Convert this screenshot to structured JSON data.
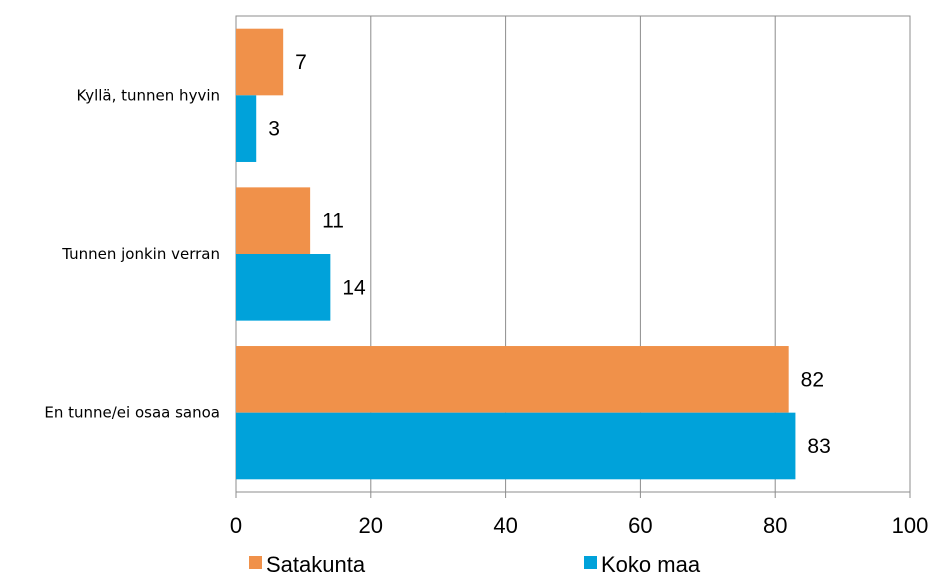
{
  "chart_data": {
    "type": "bar",
    "orientation": "horizontal",
    "categories": [
      "Kyllä, tunnen hyvin",
      "Tunnen jonkin verran",
      "En tunne/ei osaa sanoa"
    ],
    "series": [
      {
        "name": "Satakunta",
        "values": [
          7,
          11,
          82
        ],
        "color": "#F0914A"
      },
      {
        "name": "Koko maa",
        "values": [
          3,
          14,
          83
        ],
        "color": "#00A2DA"
      }
    ],
    "xlim": [
      0,
      100
    ],
    "xticks": [
      0,
      20,
      40,
      60,
      80,
      100
    ],
    "grid": true,
    "legend_position": "bottom"
  }
}
